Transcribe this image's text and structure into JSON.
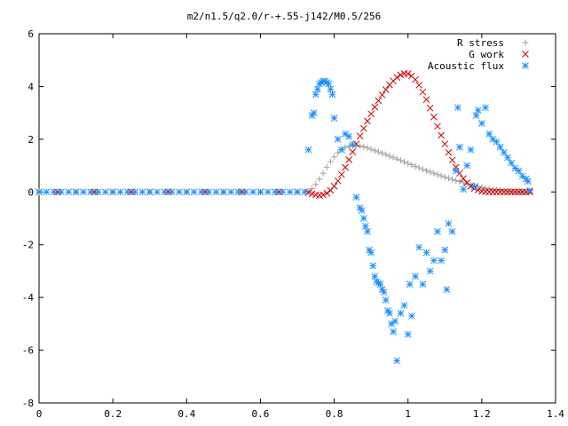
{
  "chart_data": {
    "type": "scatter",
    "title": "m2/n1.5/q2.0/r-+.55-j142/M0.5/256",
    "xlabel": "",
    "ylabel": "",
    "xlim": [
      0,
      1.4
    ],
    "ylim": [
      -8,
      6
    ],
    "x_ticks": [
      0,
      0.2,
      0.4,
      0.6,
      0.8,
      1,
      1.2,
      1.4
    ],
    "x_tick_labels": [
      "0",
      "0.2",
      "0.4",
      "0.6",
      "0.8",
      "1",
      "1.2",
      "1.4"
    ],
    "y_ticks": [
      -8,
      -6,
      -4,
      -2,
      0,
      2,
      4,
      6
    ],
    "y_tick_labels": [
      "-8",
      "-6",
      "-4",
      "-2",
      "0",
      "2",
      "4",
      "6"
    ],
    "grid": false,
    "legend_position": "top-right",
    "series": [
      {
        "name": "R stress",
        "marker": "plus",
        "color": "#a0a0a0",
        "x": [
          0.0,
          0.05,
          0.1,
          0.15,
          0.2,
          0.25,
          0.3,
          0.35,
          0.4,
          0.45,
          0.5,
          0.55,
          0.6,
          0.65,
          0.7,
          0.73,
          0.74,
          0.75,
          0.76,
          0.77,
          0.78,
          0.79,
          0.8,
          0.81,
          0.82,
          0.83,
          0.84,
          0.85,
          0.86,
          0.87,
          0.88,
          0.89,
          0.9,
          0.91,
          0.92,
          0.93,
          0.94,
          0.95,
          0.96,
          0.97,
          0.98,
          0.99,
          1.0,
          1.01,
          1.02,
          1.03,
          1.04,
          1.05,
          1.06,
          1.07,
          1.08,
          1.09,
          1.1,
          1.11,
          1.12,
          1.13,
          1.14,
          1.15,
          1.16,
          1.17,
          1.18,
          1.19,
          1.2,
          1.21,
          1.22,
          1.23,
          1.24,
          1.25,
          1.26,
          1.27,
          1.28,
          1.29,
          1.3,
          1.31,
          1.32,
          1.33
        ],
        "y": [
          0,
          0,
          0,
          0,
          0,
          0,
          0,
          0,
          0,
          0,
          0,
          0,
          0,
          0,
          0,
          0.02,
          0.13,
          0.29,
          0.49,
          0.71,
          0.94,
          1.15,
          1.33,
          1.49,
          1.61,
          1.69,
          1.74,
          1.76,
          1.76,
          1.74,
          1.71,
          1.67,
          1.62,
          1.57,
          1.52,
          1.47,
          1.42,
          1.36,
          1.31,
          1.25,
          1.2,
          1.14,
          1.08,
          1.03,
          0.97,
          0.92,
          0.86,
          0.81,
          0.76,
          0.71,
          0.66,
          0.61,
          0.56,
          0.52,
          0.47,
          0.43,
          0.39,
          0.35,
          0.31,
          0.27,
          0.24,
          0.21,
          0.18,
          0.15,
          0.12,
          0.1,
          0.08,
          0.06,
          0.04,
          0.03,
          0.02,
          0.01,
          0.0,
          0.0,
          0.0,
          0.0
        ]
      },
      {
        "name": "G work",
        "marker": "cross",
        "color": "#cc0000",
        "x": [
          0.0,
          0.05,
          0.1,
          0.15,
          0.2,
          0.25,
          0.3,
          0.35,
          0.4,
          0.45,
          0.5,
          0.55,
          0.6,
          0.65,
          0.7,
          0.73,
          0.74,
          0.75,
          0.76,
          0.77,
          0.78,
          0.79,
          0.8,
          0.81,
          0.82,
          0.83,
          0.84,
          0.85,
          0.86,
          0.87,
          0.88,
          0.89,
          0.9,
          0.91,
          0.92,
          0.93,
          0.94,
          0.95,
          0.96,
          0.97,
          0.98,
          0.99,
          1.0,
          1.01,
          1.02,
          1.03,
          1.04,
          1.05,
          1.06,
          1.07,
          1.08,
          1.09,
          1.1,
          1.11,
          1.12,
          1.13,
          1.14,
          1.15,
          1.16,
          1.17,
          1.18,
          1.19,
          1.2,
          1.21,
          1.22,
          1.23,
          1.24,
          1.25,
          1.26,
          1.27,
          1.28,
          1.29,
          1.3,
          1.31,
          1.32,
          1.33
        ],
        "y": [
          0,
          0,
          0,
          0,
          0,
          0,
          0,
          0,
          0,
          0,
          0,
          0,
          0,
          0,
          0,
          -0.02,
          -0.07,
          -0.11,
          -0.13,
          -0.11,
          -0.05,
          0.06,
          0.22,
          0.42,
          0.66,
          0.93,
          1.22,
          1.52,
          1.82,
          2.12,
          2.41,
          2.69,
          2.96,
          3.22,
          3.46,
          3.68,
          3.88,
          4.06,
          4.21,
          4.34,
          4.44,
          4.49,
          4.48,
          4.4,
          4.26,
          4.05,
          3.79,
          3.5,
          3.18,
          2.84,
          2.49,
          2.15,
          1.82,
          1.5,
          1.21,
          0.94,
          0.71,
          0.51,
          0.35,
          0.22,
          0.13,
          0.07,
          0.03,
          0.01,
          0.0,
          0.0,
          0.0,
          0.0,
          0.0,
          0.0,
          0.0,
          0.0,
          0.0,
          0.0,
          0.0,
          0.0
        ]
      },
      {
        "name": "Acoustic flux",
        "marker": "star",
        "color": "#1e90ff",
        "x": [
          0.0,
          0.02,
          0.04,
          0.06,
          0.08,
          0.1,
          0.12,
          0.14,
          0.16,
          0.18,
          0.2,
          0.22,
          0.24,
          0.26,
          0.28,
          0.3,
          0.32,
          0.34,
          0.36,
          0.38,
          0.4,
          0.42,
          0.44,
          0.46,
          0.48,
          0.5,
          0.52,
          0.54,
          0.56,
          0.58,
          0.6,
          0.62,
          0.64,
          0.66,
          0.68,
          0.7,
          0.72,
          0.73,
          0.74,
          0.745,
          0.75,
          0.755,
          0.76,
          0.765,
          0.77,
          0.775,
          0.78,
          0.785,
          0.79,
          0.795,
          0.8,
          0.81,
          0.82,
          0.83,
          0.84,
          0.85,
          0.86,
          0.87,
          0.875,
          0.88,
          0.885,
          0.89,
          0.895,
          0.9,
          0.905,
          0.91,
          0.915,
          0.92,
          0.925,
          0.93,
          0.935,
          0.94,
          0.945,
          0.95,
          0.955,
          0.96,
          0.965,
          0.97,
          0.98,
          0.99,
          1.0,
          1.005,
          1.01,
          1.02,
          1.03,
          1.04,
          1.05,
          1.06,
          1.07,
          1.08,
          1.09,
          1.1,
          1.105,
          1.11,
          1.12,
          1.13,
          1.135,
          1.14,
          1.15,
          1.16,
          1.17,
          1.18,
          1.185,
          1.19,
          1.2,
          1.21,
          1.22,
          1.23,
          1.24,
          1.25,
          1.26,
          1.27,
          1.28,
          1.29,
          1.3,
          1.31,
          1.32,
          1.325,
          1.33
        ],
        "y": [
          0,
          0,
          0,
          0,
          0,
          0,
          0,
          0,
          0,
          0,
          0,
          0,
          0,
          0,
          0,
          0,
          0,
          0,
          0,
          0,
          0,
          0,
          0,
          0,
          0,
          0,
          0,
          0,
          0,
          0,
          0,
          0,
          0,
          0,
          0,
          0,
          0,
          1.6,
          2.9,
          3.0,
          3.7,
          3.9,
          4.1,
          4.15,
          4.2,
          4.2,
          4.15,
          4.1,
          3.9,
          3.7,
          2.8,
          2.0,
          1.6,
          2.2,
          2.1,
          1.8,
          -0.2,
          -0.6,
          -0.7,
          -1.0,
          -1.3,
          -1.5,
          -2.2,
          -2.3,
          -2.8,
          -3.2,
          -3.4,
          -3.45,
          -3.5,
          -3.7,
          -3.8,
          -4.1,
          -4.5,
          -4.6,
          -5.0,
          -5.3,
          -4.9,
          -6.4,
          -4.6,
          -4.3,
          -5.4,
          -3.5,
          -4.7,
          -3.2,
          -2.1,
          -3.5,
          -2.3,
          -3.0,
          -2.6,
          -1.5,
          -2.6,
          -2.2,
          -3.7,
          -1.2,
          -1.5,
          0.8,
          3.2,
          1.7,
          0.1,
          1.0,
          1.6,
          0.2,
          2.9,
          3.1,
          2.6,
          3.2,
          2.2,
          2.0,
          1.9,
          1.7,
          1.5,
          1.3,
          1.1,
          0.9,
          0.8,
          0.6,
          0.5,
          0.4,
          0.05
        ]
      }
    ]
  }
}
